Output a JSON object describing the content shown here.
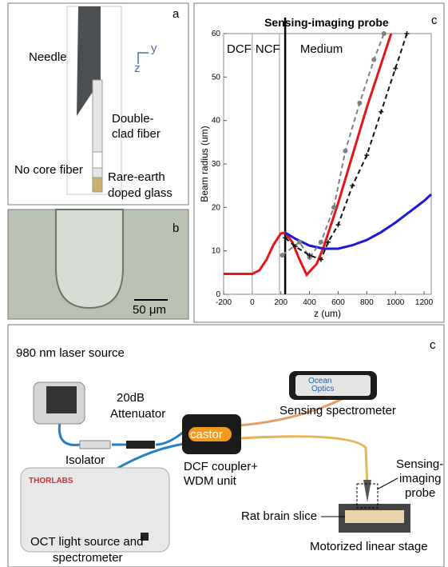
{
  "panel_a": {
    "letter": "a",
    "needle": "Needle",
    "double_clad_fiber": [
      "Double-",
      "clad fiber"
    ],
    "no_core_fiber": "No core fiber",
    "rare_earth": [
      "Rare-earth",
      "doped glass"
    ],
    "axis_z": "z",
    "axis_y": "y"
  },
  "panel_b": {
    "letter": "b",
    "scale_bar": "50 μm"
  },
  "chart_data": {
    "type": "line",
    "panel_letter": "c",
    "title": "Sensing-imaging probe",
    "x_label": "z (um)",
    "y_label": "Beam radius (um)",
    "xlim": [
      -200,
      1250
    ],
    "ylim": [
      0,
      60
    ],
    "xticks": [
      -200,
      0,
      200,
      400,
      600,
      800,
      1000,
      1200
    ],
    "yticks": [
      0,
      10,
      20,
      30,
      40,
      50,
      60
    ],
    "regions": [
      "DCF",
      "NCF",
      "Medium"
    ],
    "boundaries": [
      0,
      190
    ],
    "probe_z": 230,
    "series": [
      {
        "color": "#e8141b",
        "dash": false,
        "marker": "none",
        "x": [
          -200,
          0,
          50,
          100,
          150,
          200,
          230,
          280,
          330,
          380,
          450,
          500,
          600,
          700,
          800,
          900,
          970
        ],
        "values": [
          4.7,
          4.7,
          5.5,
          8,
          11.5,
          14,
          14.2,
          12,
          8,
          4.5,
          7,
          11,
          21,
          32,
          43,
          53,
          60
        ]
      },
      {
        "color": "#1a1adb",
        "dash": false,
        "marker": "none",
        "x": [
          230,
          300,
          400,
          500,
          600,
          700,
          800,
          900,
          1000,
          1100,
          1200,
          1250
        ],
        "values": [
          14.2,
          12.8,
          11.2,
          10.5,
          10.5,
          11.3,
          12.5,
          14.3,
          16.5,
          19,
          21.5,
          23
        ]
      },
      {
        "color": "#808080",
        "dash": true,
        "marker": "dot",
        "x": [
          210,
          330,
          400,
          480,
          570,
          650,
          750,
          850,
          920
        ],
        "values": [
          9,
          12,
          8.5,
          12,
          20,
          33,
          44,
          54,
          60
        ]
      },
      {
        "color": "#111111",
        "dash": true,
        "marker": "plus",
        "x": [
          230,
          300,
          400,
          480,
          530,
          600,
          700,
          800,
          900,
          1000,
          1080
        ],
        "values": [
          13,
          11,
          9,
          8,
          12,
          16,
          25,
          32,
          42,
          52,
          60
        ]
      }
    ]
  },
  "diagram": {
    "letter": "c",
    "laser": "980 nm laser source",
    "attenuator": [
      "20dB",
      "Attenuator"
    ],
    "isolator": "Isolator",
    "coupler": [
      "DCF coupler+",
      "WDM unit"
    ],
    "castor": "castor",
    "ocean": [
      "Ocean",
      "Optics"
    ],
    "sensing_spectrometer": "Sensing spectrometer",
    "oct": [
      "OCT light source and",
      "spectrometer"
    ],
    "thorlabs": "THORLABS",
    "probe": [
      "Sensing-",
      "imaging",
      "probe"
    ],
    "rat": "Rat brain slice",
    "stage": "Motorized linear stage"
  }
}
